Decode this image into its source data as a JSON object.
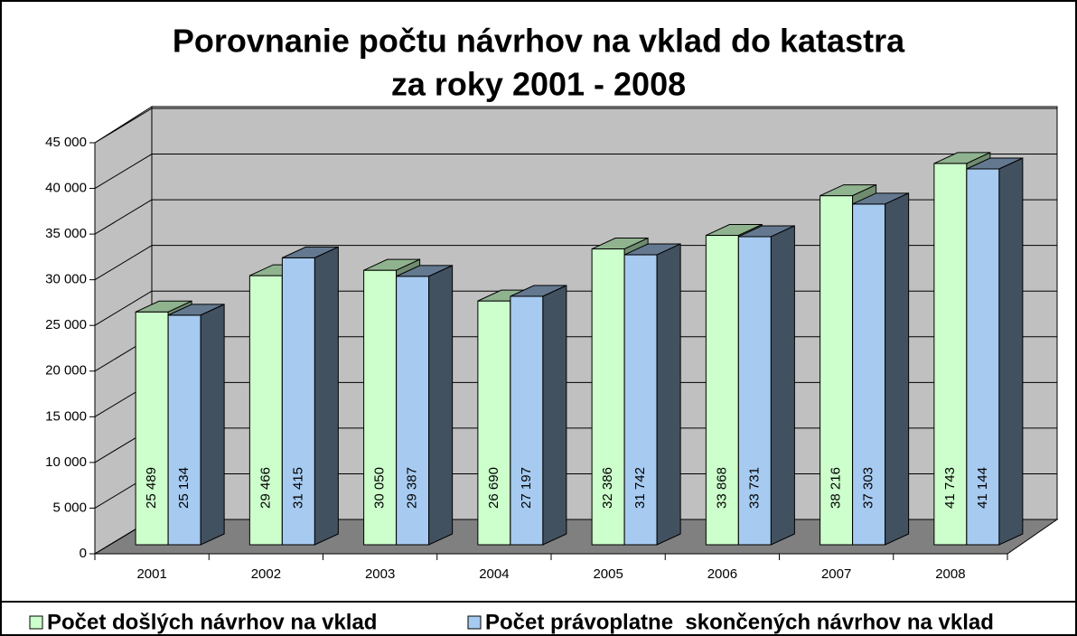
{
  "chart_data": {
    "type": "bar3d",
    "title": [
      "Porovnanie počtu návrhov na vklad do katastra",
      "za roky 2001 - 2008"
    ],
    "categories": [
      "2001",
      "2002",
      "2003",
      "2004",
      "2005",
      "2006",
      "2007",
      "2008"
    ],
    "series": [
      {
        "name": "Počet došlých návrhov na vklad",
        "color": "#ccffcc",
        "values": [
          25489,
          29466,
          30050,
          26690,
          32386,
          33868,
          38216,
          41743
        ],
        "value_labels": [
          "25 489",
          "29 466",
          "30 050",
          "26 690",
          "32 386",
          "33 868",
          "38 216",
          "41 743"
        ]
      },
      {
        "name": "Počet právoplatne  skončených návrhov na vklad",
        "color": "#a6caf0",
        "values": [
          25134,
          31415,
          29387,
          27197,
          31742,
          33731,
          37303,
          41144
        ],
        "value_labels": [
          "25 134",
          "31 415",
          "29 387",
          "27 197",
          "31 742",
          "33 731",
          "37 303",
          "41 144"
        ]
      }
    ],
    "ylim": [
      0,
      45000
    ],
    "yticks": [
      {
        "value": 0,
        "label": "0"
      },
      {
        "value": 5000,
        "label": "5 000"
      },
      {
        "value": 10000,
        "label": "10 000"
      },
      {
        "value": 15000,
        "label": "15 000"
      },
      {
        "value": 20000,
        "label": "20 000"
      },
      {
        "value": 25000,
        "label": "25 000"
      },
      {
        "value": 30000,
        "label": "30 000"
      },
      {
        "value": 35000,
        "label": "35 000"
      },
      {
        "value": 40000,
        "label": "40 000"
      },
      {
        "value": 45000,
        "label": "45 000"
      }
    ],
    "grid": true
  }
}
